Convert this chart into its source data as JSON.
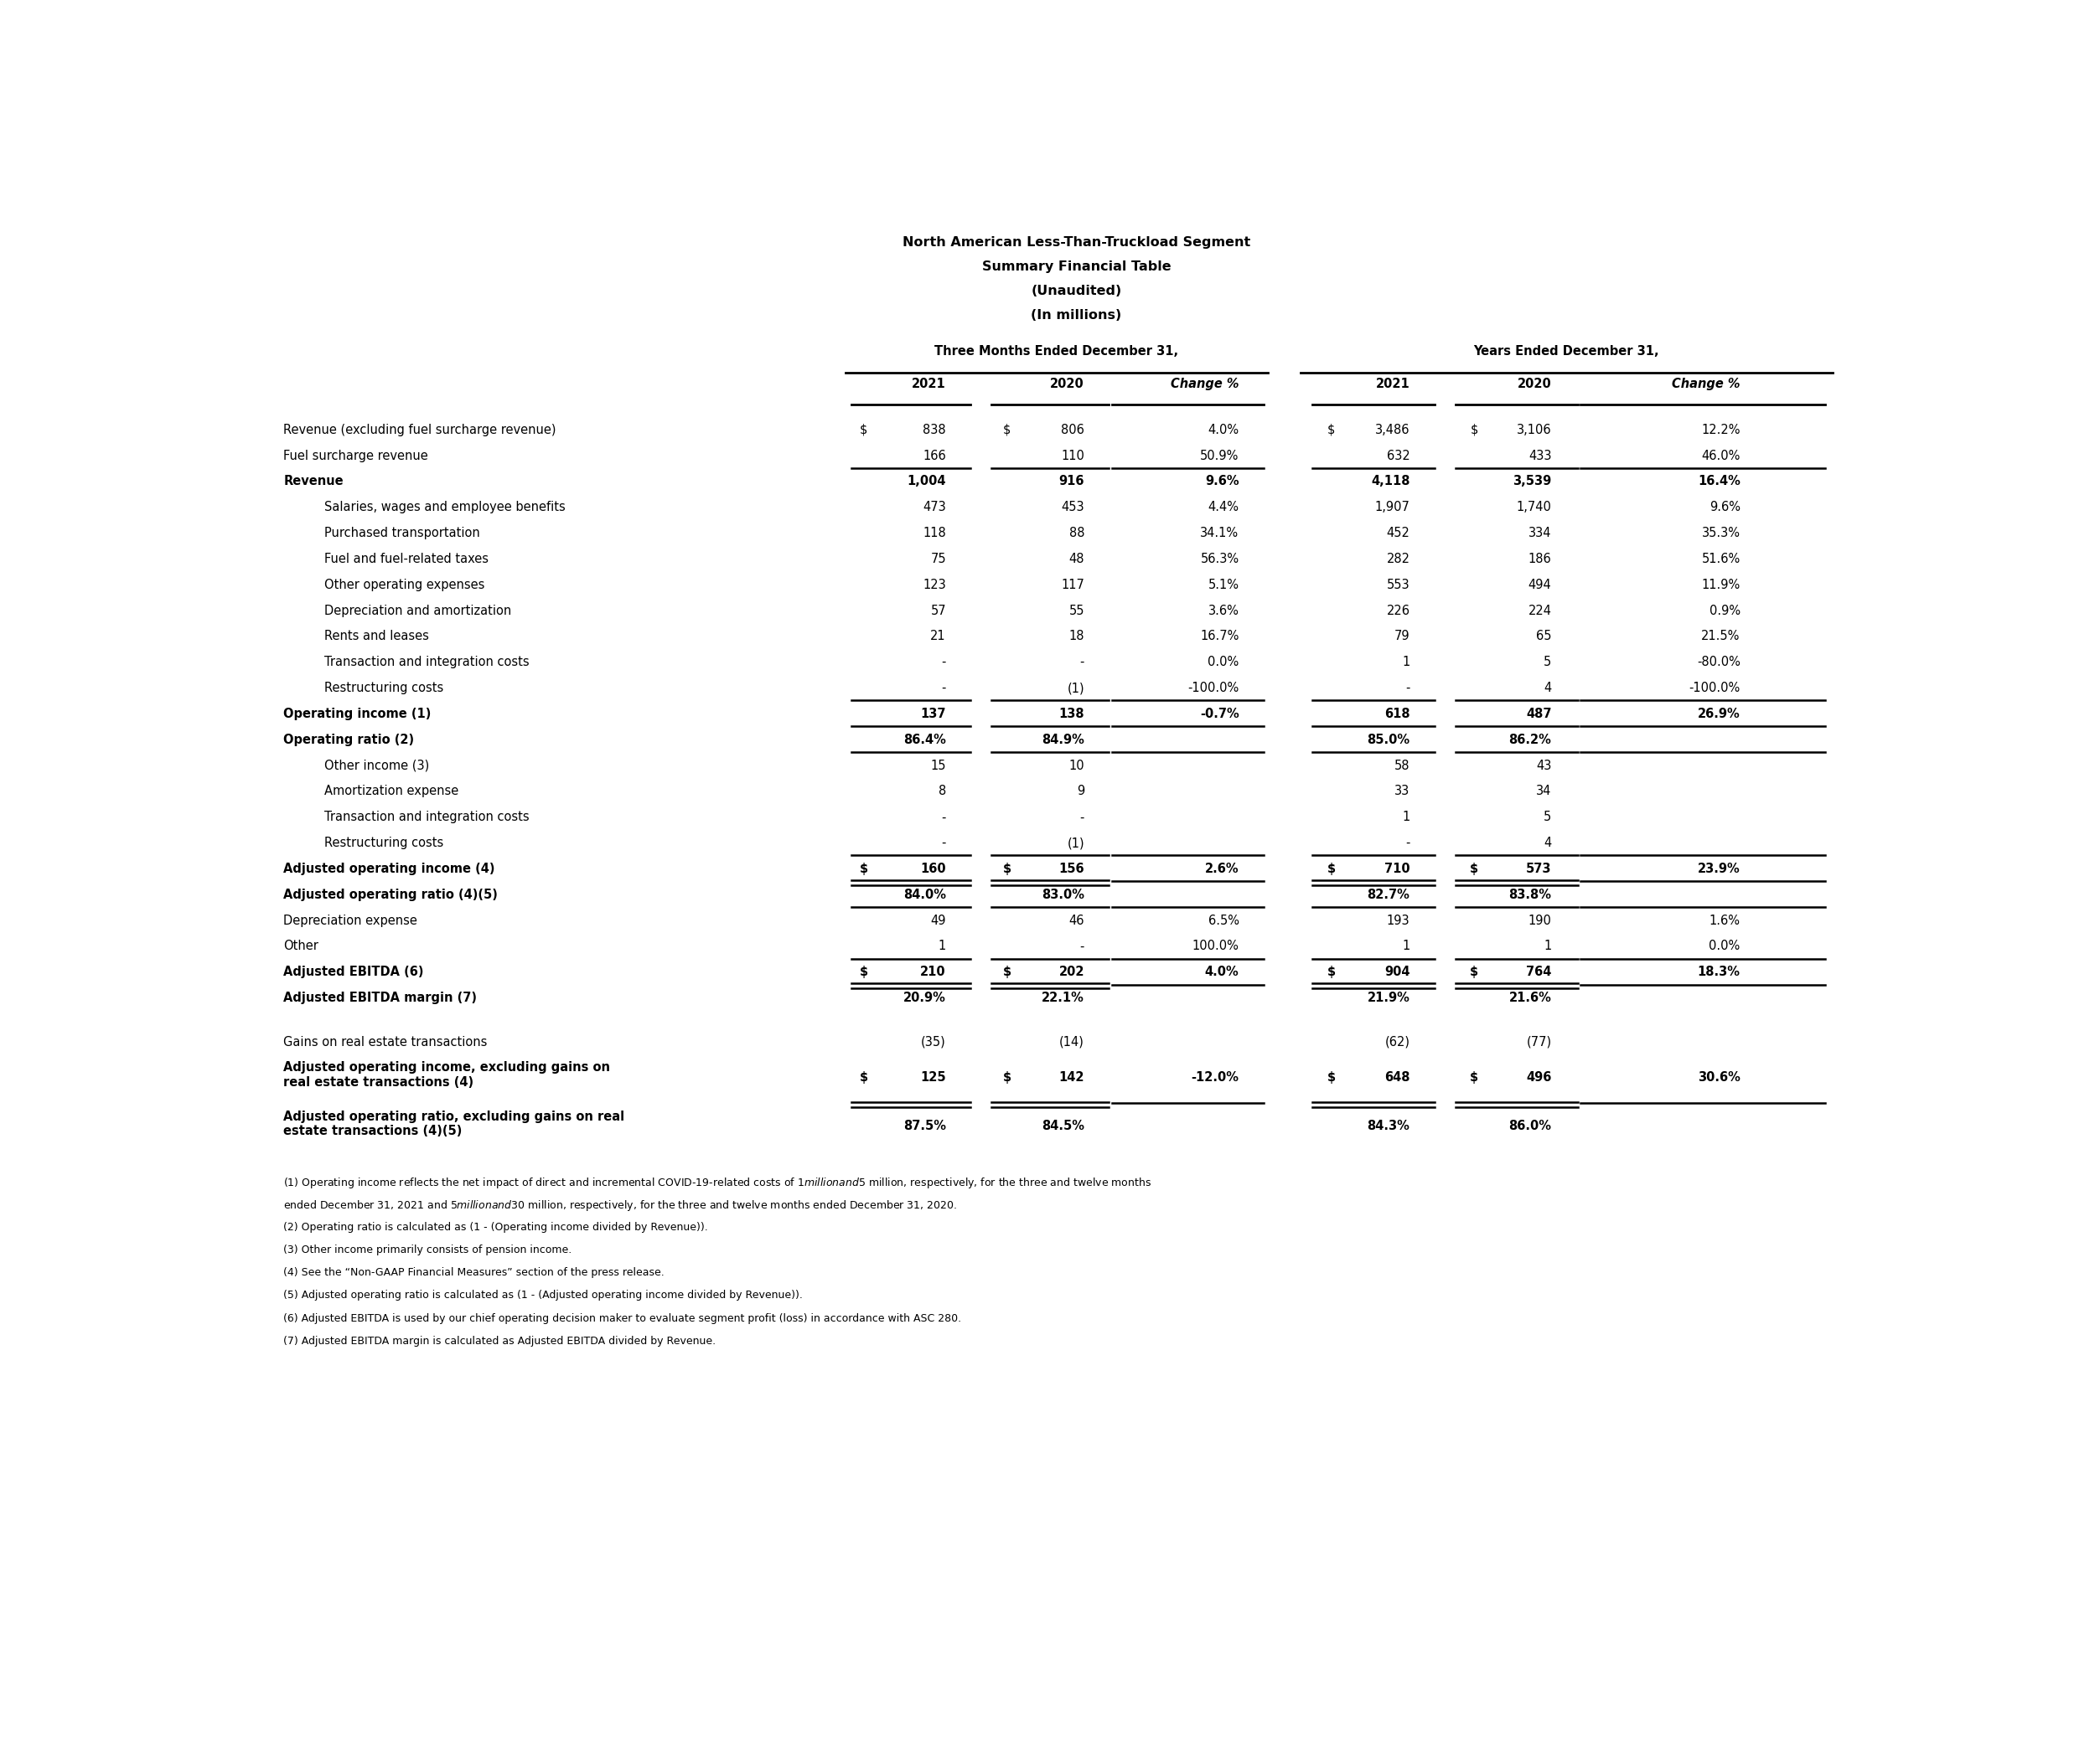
{
  "title_lines": [
    "North American Less-Than-Truckload Segment",
    "Summary Financial Table",
    "(Unaudited)",
    "(In millions)"
  ],
  "col_group1_text": "Three Months Ended December 31,",
  "col_group2_text": "Years Ended December 31,",
  "col_headers": [
    "2021",
    "2020",
    "Change %",
    "2021",
    "2020",
    "Change %"
  ],
  "rows": [
    {
      "label": "Revenue (excluding fuel surcharge revenue)",
      "bold": false,
      "indent": false,
      "spacer": false,
      "multiline": false,
      "v": [
        "838",
        "806",
        "4.0%",
        "3,486",
        "3,106",
        "12.2%"
      ],
      "ds": [
        true,
        true,
        false,
        true,
        true,
        false
      ],
      "line_below": false,
      "double_below": false
    },
    {
      "label": "Fuel surcharge revenue",
      "bold": false,
      "indent": false,
      "spacer": false,
      "multiline": false,
      "v": [
        "166",
        "110",
        "50.9%",
        "632",
        "433",
        "46.0%"
      ],
      "ds": [
        false,
        false,
        false,
        false,
        false,
        false
      ],
      "line_below": true,
      "double_below": false
    },
    {
      "label": "Revenue",
      "bold": true,
      "indent": false,
      "spacer": false,
      "multiline": false,
      "v": [
        "1,004",
        "916",
        "9.6%",
        "4,118",
        "3,539",
        "16.4%"
      ],
      "ds": [
        false,
        false,
        false,
        false,
        false,
        false
      ],
      "line_below": false,
      "double_below": false
    },
    {
      "label": "Salaries, wages and employee benefits",
      "bold": false,
      "indent": true,
      "spacer": false,
      "multiline": false,
      "v": [
        "473",
        "453",
        "4.4%",
        "1,907",
        "1,740",
        "9.6%"
      ],
      "ds": [
        false,
        false,
        false,
        false,
        false,
        false
      ],
      "line_below": false,
      "double_below": false
    },
    {
      "label": "Purchased transportation",
      "bold": false,
      "indent": true,
      "spacer": false,
      "multiline": false,
      "v": [
        "118",
        "88",
        "34.1%",
        "452",
        "334",
        "35.3%"
      ],
      "ds": [
        false,
        false,
        false,
        false,
        false,
        false
      ],
      "line_below": false,
      "double_below": false
    },
    {
      "label": "Fuel and fuel-related taxes",
      "bold": false,
      "indent": true,
      "spacer": false,
      "multiline": false,
      "v": [
        "75",
        "48",
        "56.3%",
        "282",
        "186",
        "51.6%"
      ],
      "ds": [
        false,
        false,
        false,
        false,
        false,
        false
      ],
      "line_below": false,
      "double_below": false
    },
    {
      "label": "Other operating expenses",
      "bold": false,
      "indent": true,
      "spacer": false,
      "multiline": false,
      "v": [
        "123",
        "117",
        "5.1%",
        "553",
        "494",
        "11.9%"
      ],
      "ds": [
        false,
        false,
        false,
        false,
        false,
        false
      ],
      "line_below": false,
      "double_below": false
    },
    {
      "label": "Depreciation and amortization",
      "bold": false,
      "indent": true,
      "spacer": false,
      "multiline": false,
      "v": [
        "57",
        "55",
        "3.6%",
        "226",
        "224",
        "0.9%"
      ],
      "ds": [
        false,
        false,
        false,
        false,
        false,
        false
      ],
      "line_below": false,
      "double_below": false
    },
    {
      "label": "Rents and leases",
      "bold": false,
      "indent": true,
      "spacer": false,
      "multiline": false,
      "v": [
        "21",
        "18",
        "16.7%",
        "79",
        "65",
        "21.5%"
      ],
      "ds": [
        false,
        false,
        false,
        false,
        false,
        false
      ],
      "line_below": false,
      "double_below": false
    },
    {
      "label": "Transaction and integration costs",
      "bold": false,
      "indent": true,
      "spacer": false,
      "multiline": false,
      "v": [
        "-",
        "-",
        "0.0%",
        "1",
        "5",
        "-80.0%"
      ],
      "ds": [
        false,
        false,
        false,
        false,
        false,
        false
      ],
      "line_below": false,
      "double_below": false
    },
    {
      "label": "Restructuring costs",
      "bold": false,
      "indent": true,
      "spacer": false,
      "multiline": false,
      "v": [
        "-",
        "(1)",
        "-100.0%",
        "-",
        "4",
        "-100.0%"
      ],
      "ds": [
        false,
        false,
        false,
        false,
        false,
        false
      ],
      "line_below": true,
      "double_below": false
    },
    {
      "label": "Operating income (1)",
      "bold": true,
      "indent": false,
      "spacer": false,
      "multiline": false,
      "v": [
        "137",
        "138",
        "-0.7%",
        "618",
        "487",
        "26.9%"
      ],
      "ds": [
        false,
        false,
        false,
        false,
        false,
        false
      ],
      "line_below": true,
      "double_below": false
    },
    {
      "label": "Operating ratio (2)",
      "bold": true,
      "indent": false,
      "spacer": false,
      "multiline": false,
      "v": [
        "86.4%",
        "84.9%",
        "",
        "85.0%",
        "86.2%",
        ""
      ],
      "ds": [
        false,
        false,
        false,
        false,
        false,
        false
      ],
      "line_below": true,
      "double_below": false
    },
    {
      "label": "Other income (3)",
      "bold": false,
      "indent": true,
      "spacer": false,
      "multiline": false,
      "v": [
        "15",
        "10",
        "",
        "58",
        "43",
        ""
      ],
      "ds": [
        false,
        false,
        false,
        false,
        false,
        false
      ],
      "line_below": false,
      "double_below": false
    },
    {
      "label": "Amortization expense",
      "bold": false,
      "indent": true,
      "spacer": false,
      "multiline": false,
      "v": [
        "8",
        "9",
        "",
        "33",
        "34",
        ""
      ],
      "ds": [
        false,
        false,
        false,
        false,
        false,
        false
      ],
      "line_below": false,
      "double_below": false
    },
    {
      "label": "Transaction and integration costs",
      "bold": false,
      "indent": true,
      "spacer": false,
      "multiline": false,
      "v": [
        "-",
        "-",
        "",
        "1",
        "5",
        ""
      ],
      "ds": [
        false,
        false,
        false,
        false,
        false,
        false
      ],
      "line_below": false,
      "double_below": false
    },
    {
      "label": "Restructuring costs",
      "bold": false,
      "indent": true,
      "spacer": false,
      "multiline": false,
      "v": [
        "-",
        "(1)",
        "",
        "-",
        "4",
        ""
      ],
      "ds": [
        false,
        false,
        false,
        false,
        false,
        false
      ],
      "line_below": true,
      "double_below": false
    },
    {
      "label": "Adjusted operating income (4)",
      "bold": true,
      "indent": false,
      "spacer": false,
      "multiline": false,
      "v": [
        "160",
        "156",
        "2.6%",
        "710",
        "573",
        "23.9%"
      ],
      "ds": [
        true,
        true,
        false,
        true,
        true,
        false
      ],
      "line_below": true,
      "double_below": true
    },
    {
      "label": "Adjusted operating ratio (4)(5)",
      "bold": true,
      "indent": false,
      "spacer": false,
      "multiline": false,
      "v": [
        "84.0%",
        "83.0%",
        "",
        "82.7%",
        "83.8%",
        ""
      ],
      "ds": [
        false,
        false,
        false,
        false,
        false,
        false
      ],
      "line_below": true,
      "double_below": false
    },
    {
      "label": "Depreciation expense",
      "bold": false,
      "indent": false,
      "spacer": false,
      "multiline": false,
      "v": [
        "49",
        "46",
        "6.5%",
        "193",
        "190",
        "1.6%"
      ],
      "ds": [
        false,
        false,
        false,
        false,
        false,
        false
      ],
      "line_below": false,
      "double_below": false
    },
    {
      "label": "Other",
      "bold": false,
      "indent": false,
      "spacer": false,
      "multiline": false,
      "v": [
        "1",
        "-",
        "100.0%",
        "1",
        "1",
        "0.0%"
      ],
      "ds": [
        false,
        false,
        false,
        false,
        false,
        false
      ],
      "line_below": true,
      "double_below": false
    },
    {
      "label": "Adjusted EBITDA (6)",
      "bold": true,
      "indent": false,
      "spacer": false,
      "multiline": false,
      "v": [
        "210",
        "202",
        "4.0%",
        "904",
        "764",
        "18.3%"
      ],
      "ds": [
        true,
        true,
        false,
        true,
        true,
        false
      ],
      "line_below": true,
      "double_below": true
    },
    {
      "label": "Adjusted EBITDA margin (7)",
      "bold": true,
      "indent": false,
      "spacer": false,
      "multiline": false,
      "v": [
        "20.9%",
        "22.1%",
        "",
        "21.9%",
        "21.6%",
        ""
      ],
      "ds": [
        false,
        false,
        false,
        false,
        false,
        false
      ],
      "line_below": false,
      "double_below": false
    },
    {
      "label": "",
      "bold": false,
      "indent": false,
      "spacer": true,
      "multiline": false,
      "v": [
        "",
        "",
        "",
        "",
        "",
        ""
      ],
      "ds": [
        false,
        false,
        false,
        false,
        false,
        false
      ],
      "line_below": false,
      "double_below": false
    },
    {
      "label": "Gains on real estate transactions",
      "bold": false,
      "indent": false,
      "spacer": false,
      "multiline": false,
      "v": [
        "(35)",
        "(14)",
        "",
        "(62)",
        "(77)",
        ""
      ],
      "ds": [
        false,
        false,
        false,
        false,
        false,
        false
      ],
      "line_below": false,
      "double_below": false
    },
    {
      "label": "Adjusted operating income, excluding gains on\nreal estate transactions (4)",
      "bold": true,
      "indent": false,
      "spacer": false,
      "multiline": true,
      "v": [
        "125",
        "142",
        "-12.0%",
        "648",
        "496",
        "30.6%"
      ],
      "ds": [
        true,
        true,
        false,
        true,
        true,
        false
      ],
      "line_below": true,
      "double_below": true
    },
    {
      "label": "Adjusted operating ratio, excluding gains on real\nestate transactions (4)(5)",
      "bold": true,
      "indent": false,
      "spacer": false,
      "multiline": true,
      "v": [
        "87.5%",
        "84.5%",
        "",
        "84.3%",
        "86.0%",
        ""
      ],
      "ds": [
        false,
        false,
        false,
        false,
        false,
        false
      ],
      "line_below": false,
      "double_below": false
    }
  ],
  "footnotes": [
    "(1) Operating income reflects the net impact of direct and incremental COVID-19-related costs of $1 million and $5 million, respectively, for the three and twelve months",
    "ended December 31, 2021 and $5 million and $30 million, respectively, for the three and twelve months ended December 31, 2020.",
    "(2) Operating ratio is calculated as (1 - (Operating income divided by Revenue)).",
    "(3) Other income primarily consists of pension income.",
    "(4) See the “Non-GAAP Financial Measures” section of the press release.",
    "(5) Adjusted operating ratio is calculated as (1 - (Adjusted operating income divided by Revenue)).",
    "(6) Adjusted EBITDA is used by our chief operating decision maker to evaluate segment profit (loss) in accordance with ASC 280.",
    "(7) Adjusted EBITDA margin is calculated as Adjusted EBITDA divided by Revenue."
  ]
}
